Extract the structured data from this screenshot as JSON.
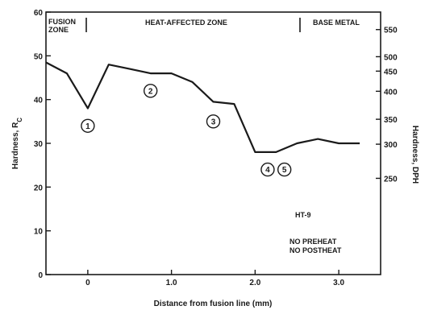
{
  "chart_data": {
    "type": "line",
    "xlabel": "Distance from fusion line (mm)",
    "ylabel_left": "Hardness, R",
    "ylabel_left_subscript": "C",
    "ylabel_right": "Hardness, DPH",
    "xlim": [
      -0.5,
      3.5
    ],
    "ylim": [
      0,
      60
    ],
    "x_ticks": [
      {
        "value": 0,
        "label": "0"
      },
      {
        "value": 1,
        "label": "1.0"
      },
      {
        "value": 2,
        "label": "2.0"
      },
      {
        "value": 3,
        "label": "3.0"
      }
    ],
    "y_ticks": [
      {
        "value": 0,
        "label": "0"
      },
      {
        "value": 10,
        "label": "10"
      },
      {
        "value": 20,
        "label": "20"
      },
      {
        "value": 30,
        "label": "30"
      },
      {
        "value": 40,
        "label": "40"
      },
      {
        "value": 50,
        "label": "50"
      },
      {
        "value": 60,
        "label": "60"
      }
    ],
    "right_ticks": [
      {
        "rc": 56,
        "label": "550"
      },
      {
        "rc": 49.8,
        "label": "500"
      },
      {
        "rc": 46.5,
        "label": "450"
      },
      {
        "rc": 41.9,
        "label": "400"
      },
      {
        "rc": 35.5,
        "label": "350"
      },
      {
        "rc": 29.8,
        "label": "300"
      },
      {
        "rc": 22,
        "label": "250"
      }
    ],
    "series": [
      {
        "x": [
          -0.5,
          -0.25,
          0.0,
          0.25,
          0.5,
          0.75,
          1.0,
          1.25,
          1.5,
          1.75,
          2.0,
          2.25,
          2.5,
          2.75,
          3.0,
          3.25
        ],
        "y": [
          48.5,
          46,
          38,
          48,
          47,
          46,
          46,
          44,
          39.5,
          39,
          28,
          28,
          30,
          31,
          30,
          30
        ]
      }
    ],
    "markers": [
      {
        "label": "1",
        "x": 0.0,
        "y": 34
      },
      {
        "label": "2",
        "x": 0.75,
        "y": 42
      },
      {
        "label": "3",
        "x": 1.5,
        "y": 35
      },
      {
        "label": "4",
        "x": 2.15,
        "y": 24
      },
      {
        "label": "5",
        "x": 2.35,
        "y": 24
      }
    ],
    "zones": {
      "fusion": [
        "FUSION",
        "ZONE"
      ],
      "haz": "HEAT-AFFECTED ZONE",
      "base": "BASE METAL"
    },
    "notes": {
      "material": "HT-9",
      "preheat": "NO PREHEAT",
      "postheat": "NO POSTHEAT"
    }
  }
}
